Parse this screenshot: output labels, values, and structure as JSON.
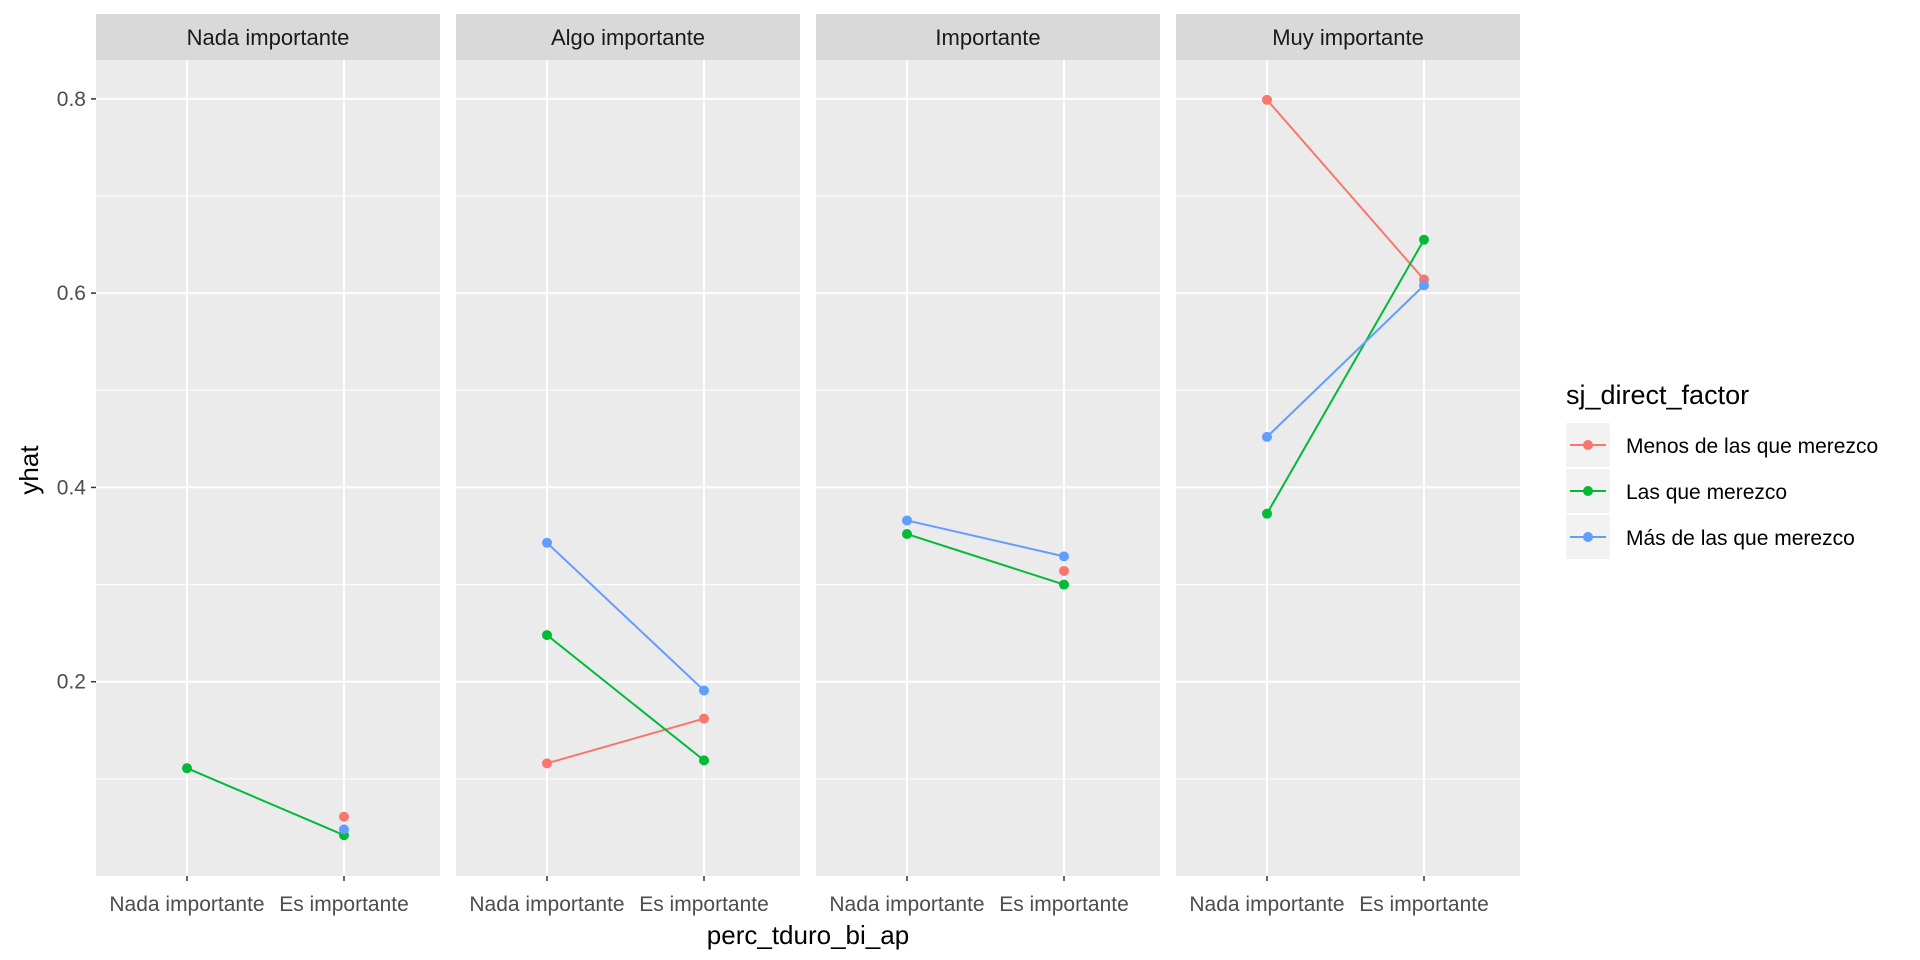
{
  "chart_data": {
    "type": "line",
    "facet_variable_levels": [
      "Nada importante",
      "Algo importante",
      "Importante",
      "Muy importante"
    ],
    "categories": [
      "Nada importante",
      "Es importante"
    ],
    "xlabel": "perc_tduro_bi_ap",
    "ylabel": "yhat",
    "ylim": [
      0.0,
      0.84
    ],
    "yticks": [
      0.2,
      0.4,
      0.6,
      0.8
    ],
    "ytick_labels": [
      "0.2",
      "0.4",
      "0.6",
      "0.8"
    ],
    "grid": true,
    "legend": {
      "title": "sj_direct_factor",
      "position": "right",
      "entries": [
        "Menos de las que merezco",
        "Las que merezco",
        "Más de las que merezco"
      ]
    },
    "series": [
      {
        "name": "Menos de las que merezco",
        "color": "#F8766D",
        "panels": [
          [
            null,
            0.061
          ],
          [
            0.116,
            0.162
          ],
          [
            null,
            0.314
          ],
          [
            0.799,
            0.614
          ]
        ]
      },
      {
        "name": "Las que merezco",
        "color": "#00BA38",
        "panels": [
          [
            0.111,
            0.042
          ],
          [
            0.248,
            0.119
          ],
          [
            0.352,
            0.3
          ],
          [
            0.373,
            0.655
          ]
        ]
      },
      {
        "name": "Más de las que merezco",
        "color": "#619CFF",
        "panels": [
          [
            null,
            0.048
          ],
          [
            0.343,
            0.191
          ],
          [
            0.366,
            0.329
          ],
          [
            0.452,
            0.608
          ]
        ]
      }
    ]
  }
}
